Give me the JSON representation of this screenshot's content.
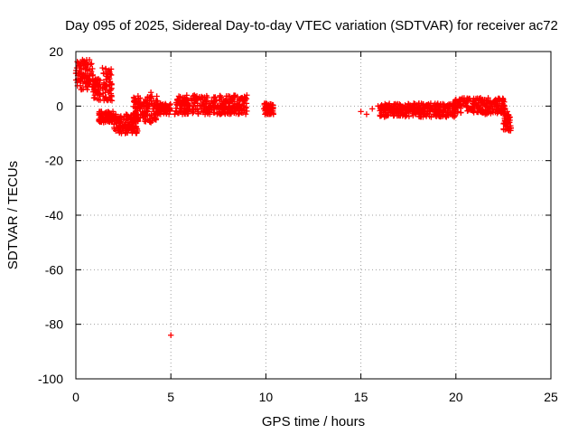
{
  "chart_data": {
    "type": "scatter",
    "title": "Day 095 of 2025, Sidereal Day-to-day VTEC variation (SDTVAR) for receiver ac72",
    "xlabel": "GPS time / hours",
    "ylabel": "SDTVAR / TECUs",
    "xlim": [
      0,
      25
    ],
    "ylim": [
      -100,
      20
    ],
    "xticks": [
      0,
      5,
      10,
      15,
      20,
      25
    ],
    "yticks": [
      -100,
      -80,
      -60,
      -40,
      -20,
      0,
      20
    ],
    "xtick_labels": [
      "0",
      "5",
      "10",
      "15",
      "20",
      "25"
    ],
    "ytick_labels": [
      "-100",
      "-80",
      "-60",
      "-40",
      "-20",
      "0",
      "20"
    ],
    "grid": true,
    "marker": "plus",
    "color": "#ff0000",
    "series": [
      {
        "name": "SDTVAR",
        "points": [
          [
            0.0,
            12
          ],
          [
            0.05,
            14
          ],
          [
            0.1,
            10
          ],
          [
            0.15,
            15
          ],
          [
            0.2,
            13
          ],
          [
            0.25,
            16
          ],
          [
            0.3,
            11
          ],
          [
            0.35,
            17
          ],
          [
            0.4,
            14
          ],
          [
            0.45,
            9
          ],
          [
            0.5,
            12
          ],
          [
            0.55,
            10
          ],
          [
            0.6,
            13
          ],
          [
            0.65,
            8
          ],
          [
            0.7,
            11
          ],
          [
            0.75,
            9
          ],
          [
            0.8,
            12
          ],
          [
            0.85,
            7
          ],
          [
            0.9,
            10
          ],
          [
            0.95,
            8
          ],
          [
            1.0,
            9
          ],
          [
            1.05,
            6
          ],
          [
            1.1,
            8
          ],
          [
            1.15,
            5
          ],
          [
            1.2,
            7
          ],
          [
            1.25,
            -3
          ],
          [
            1.3,
            -4
          ],
          [
            1.35,
            -2
          ],
          [
            1.4,
            14
          ],
          [
            1.45,
            12
          ],
          [
            1.5,
            8
          ],
          [
            1.55,
            5
          ],
          [
            1.6,
            -4
          ],
          [
            1.65,
            -3
          ],
          [
            1.7,
            -5
          ],
          [
            1.75,
            10
          ],
          [
            1.8,
            9
          ],
          [
            1.85,
            6
          ],
          [
            1.9,
            2
          ],
          [
            1.95,
            -2
          ],
          [
            2.0,
            -5
          ],
          [
            2.05,
            -4
          ],
          [
            2.1,
            -3
          ],
          [
            2.15,
            -6
          ],
          [
            2.2,
            -8
          ],
          [
            2.25,
            -5
          ],
          [
            2.3,
            -9
          ],
          [
            2.35,
            -7
          ],
          [
            2.4,
            -10
          ],
          [
            2.45,
            -8
          ],
          [
            2.5,
            -9
          ],
          [
            2.55,
            -7
          ],
          [
            2.6,
            -10
          ],
          [
            2.65,
            -8
          ],
          [
            2.7,
            -9
          ],
          [
            2.75,
            -6
          ],
          [
            2.8,
            -8
          ],
          [
            2.85,
            -5
          ],
          [
            2.9,
            -7
          ],
          [
            2.95,
            -4
          ],
          [
            3.0,
            -6
          ],
          [
            3.05,
            -3
          ],
          [
            3.1,
            -5
          ],
          [
            3.15,
            -2
          ],
          [
            3.2,
            -4
          ],
          [
            3.25,
            -1
          ],
          [
            3.3,
            2
          ],
          [
            3.35,
            1
          ],
          [
            3.4,
            -1
          ],
          [
            3.45,
            0
          ],
          [
            3.5,
            -2
          ],
          [
            3.55,
            -3
          ],
          [
            3.6,
            -1
          ],
          [
            3.65,
            -4
          ],
          [
            3.7,
            -2
          ],
          [
            3.75,
            1
          ],
          [
            3.8,
            -1
          ],
          [
            3.85,
            0
          ],
          [
            3.9,
            3
          ],
          [
            3.95,
            5
          ],
          [
            4.0,
            1
          ],
          [
            4.05,
            -1
          ],
          [
            4.1,
            2
          ],
          [
            4.15,
            0
          ],
          [
            4.2,
            -2
          ],
          [
            4.25,
            -1
          ],
          [
            4.3,
            -3
          ],
          [
            4.35,
            0
          ],
          [
            4.4,
            -1
          ],
          [
            4.45,
            1
          ],
          [
            4.5,
            -2
          ],
          [
            4.6,
            -1
          ],
          [
            4.7,
            0
          ],
          [
            4.8,
            -2
          ],
          [
            4.9,
            -3
          ],
          [
            4.95,
            -1
          ],
          [
            5.0,
            -84
          ],
          [
            5.2,
            -3
          ],
          [
            5.3,
            -2
          ],
          [
            5.4,
            1
          ],
          [
            5.5,
            -1
          ],
          [
            5.6,
            2
          ],
          [
            5.7,
            0
          ],
          [
            5.8,
            -2
          ],
          [
            5.9,
            1
          ],
          [
            6.0,
            -1
          ],
          [
            6.1,
            2
          ],
          [
            6.2,
            0
          ],
          [
            6.3,
            -1
          ],
          [
            6.4,
            1
          ],
          [
            6.5,
            3
          ],
          [
            6.6,
            0
          ],
          [
            6.7,
            -2
          ],
          [
            6.8,
            -3
          ],
          [
            6.9,
            -1
          ],
          [
            7.0,
            -2
          ],
          [
            7.1,
            0
          ],
          [
            7.2,
            1
          ],
          [
            7.3,
            3
          ],
          [
            7.4,
            2
          ],
          [
            7.5,
            0
          ],
          [
            7.6,
            -1
          ],
          [
            7.7,
            1
          ],
          [
            7.8,
            -2
          ],
          [
            7.9,
            0
          ],
          [
            8.0,
            -1
          ],
          [
            8.1,
            1
          ],
          [
            8.2,
            -2
          ],
          [
            8.3,
            0
          ],
          [
            8.4,
            -1
          ],
          [
            8.5,
            1
          ],
          [
            8.6,
            2
          ],
          [
            8.7,
            3
          ],
          [
            8.8,
            0
          ],
          [
            8.9,
            2
          ],
          [
            9.0,
            4
          ],
          [
            9.9,
            -1
          ],
          [
            10.0,
            1
          ],
          [
            10.1,
            -2
          ],
          [
            10.2,
            0
          ],
          [
            10.3,
            -1
          ],
          [
            10.4,
            -3
          ],
          [
            15.0,
            -2
          ],
          [
            15.3,
            -3
          ],
          [
            15.6,
            -1
          ],
          [
            15.9,
            0
          ],
          [
            16.1,
            -1
          ],
          [
            16.3,
            0
          ],
          [
            16.5,
            -1
          ],
          [
            16.7,
            0
          ],
          [
            16.9,
            -1
          ],
          [
            17.1,
            0
          ],
          [
            17.3,
            -1
          ],
          [
            17.5,
            -2
          ],
          [
            17.7,
            -1
          ],
          [
            17.9,
            -3
          ],
          [
            18.1,
            -2
          ],
          [
            18.3,
            -3
          ],
          [
            18.5,
            -2
          ],
          [
            18.7,
            -4
          ],
          [
            18.9,
            -2
          ],
          [
            19.1,
            -3
          ],
          [
            19.3,
            -2
          ],
          [
            19.5,
            -4
          ],
          [
            19.7,
            -3
          ],
          [
            19.9,
            -1
          ],
          [
            20.1,
            -2
          ],
          [
            20.3,
            0
          ],
          [
            20.5,
            1
          ],
          [
            20.7,
            -1
          ],
          [
            20.9,
            2
          ],
          [
            21.1,
            0
          ],
          [
            21.3,
            -2
          ],
          [
            21.5,
            1
          ],
          [
            21.7,
            3
          ],
          [
            21.9,
            0
          ],
          [
            22.1,
            -1
          ],
          [
            22.3,
            2
          ],
          [
            22.5,
            0
          ],
          [
            22.6,
            -3
          ],
          [
            22.7,
            -2
          ],
          [
            22.8,
            -4
          ]
        ],
        "clusters": [
          {
            "x": [
              0.0,
              0.9
            ],
            "y": [
              6,
              17
            ]
          },
          {
            "x": [
              0.9,
              1.3
            ],
            "y": [
              2,
              10
            ]
          },
          {
            "x": [
              1.2,
              2.0
            ],
            "y": [
              -6,
              -2
            ]
          },
          {
            "x": [
              1.4,
              1.9
            ],
            "y": [
              2,
              14
            ]
          },
          {
            "x": [
              2.0,
              3.3
            ],
            "y": [
              -10,
              -3
            ]
          },
          {
            "x": [
              3.0,
              4.3
            ],
            "y": [
              -6,
              4
            ]
          },
          {
            "x": [
              4.3,
              5.0
            ],
            "y": [
              -3,
              1
            ]
          },
          {
            "x": [
              5.2,
              9.0
            ],
            "y": [
              -3,
              4
            ]
          },
          {
            "x": [
              9.9,
              10.4
            ],
            "y": [
              -3,
              1
            ]
          },
          {
            "x": [
              16.0,
              20.0
            ],
            "y": [
              -4,
              1
            ]
          },
          {
            "x": [
              19.9,
              22.6
            ],
            "y": [
              -3,
              3
            ]
          },
          {
            "x": [
              22.5,
              22.9
            ],
            "y": [
              -9,
              -3
            ]
          }
        ]
      }
    ]
  }
}
